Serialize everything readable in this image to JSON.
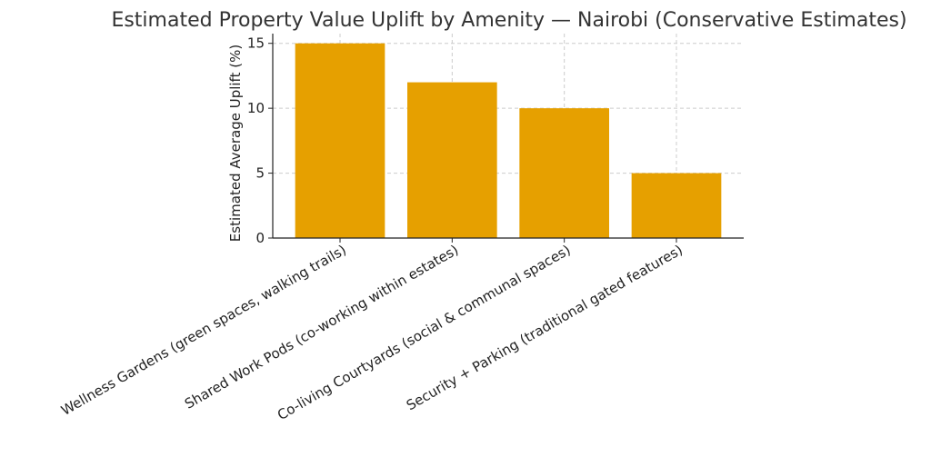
{
  "chart_data": {
    "type": "bar",
    "title": "Estimated Property Value Uplift by Amenity — Nairobi (Conservative Estimates)",
    "xlabel": "",
    "ylabel": "Estimated Average Uplift (%)",
    "categories": [
      "Wellness Gardens (green spaces, walking trails)",
      "Shared Work Pods (co-working within estates)",
      "Co-living Courtyards (social & communal spaces)",
      "Security + Parking (traditional gated features)"
    ],
    "values": [
      15,
      12,
      10,
      5
    ],
    "ylim": [
      0,
      15.75
    ],
    "yticks": [
      0,
      5,
      10,
      15
    ],
    "grid": true,
    "bar_color": "#e6a000"
  }
}
